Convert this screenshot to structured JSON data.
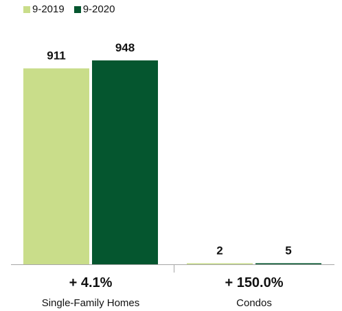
{
  "chart_data": {
    "type": "bar",
    "categories": [
      "Single-Family Homes",
      "Condos"
    ],
    "series": [
      {
        "name": "9-2019",
        "color": "#c9dd8a",
        "values": [
          911,
          2
        ]
      },
      {
        "name": "9-2020",
        "color": "#05562f",
        "values": [
          948,
          5
        ]
      }
    ],
    "data_labels": [
      [
        "911",
        "948"
      ],
      [
        "2",
        "5"
      ]
    ],
    "changes": [
      "+ 4.1%",
      "+ 150.0%"
    ],
    "ylim": [
      0,
      1000
    ],
    "grid": false,
    "legend_position": "top-left",
    "axis_color": "#a6a6a6"
  }
}
